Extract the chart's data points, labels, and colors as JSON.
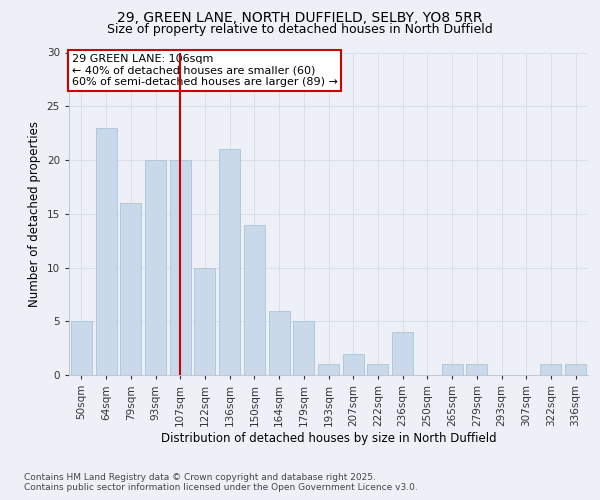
{
  "title_line1": "29, GREEN LANE, NORTH DUFFIELD, SELBY, YO8 5RR",
  "title_line2": "Size of property relative to detached houses in North Duffield",
  "xlabel": "Distribution of detached houses by size in North Duffield",
  "ylabel": "Number of detached properties",
  "categories": [
    "50sqm",
    "64sqm",
    "79sqm",
    "93sqm",
    "107sqm",
    "122sqm",
    "136sqm",
    "150sqm",
    "164sqm",
    "179sqm",
    "193sqm",
    "207sqm",
    "222sqm",
    "236sqm",
    "250sqm",
    "265sqm",
    "279sqm",
    "293sqm",
    "307sqm",
    "322sqm",
    "336sqm"
  ],
  "values": [
    5,
    23,
    16,
    20,
    20,
    10,
    21,
    14,
    6,
    5,
    1,
    2,
    1,
    4,
    0,
    1,
    1,
    0,
    0,
    1,
    1
  ],
  "bar_color": "#c9d9ea",
  "bar_edgecolor": "#a8c4d8",
  "vline_index": 4,
  "vline_color": "#cc0000",
  "annotation_text": "29 GREEN LANE: 106sqm\n← 40% of detached houses are smaller (60)\n60% of semi-detached houses are larger (89) →",
  "annotation_box_color": "#ffffff",
  "annotation_box_edgecolor": "#cc0000",
  "ylim": [
    0,
    30
  ],
  "yticks": [
    0,
    5,
    10,
    15,
    20,
    25,
    30
  ],
  "grid_color": "#d8dfe8",
  "background_color": "#edf1f7",
  "footer_text": "Contains HM Land Registry data © Crown copyright and database right 2025.\nContains public sector information licensed under the Open Government Licence v3.0.",
  "title_fontsize": 10,
  "subtitle_fontsize": 9,
  "axis_label_fontsize": 8.5,
  "tick_fontsize": 7.5,
  "annotation_fontsize": 8,
  "footer_fontsize": 6.5
}
